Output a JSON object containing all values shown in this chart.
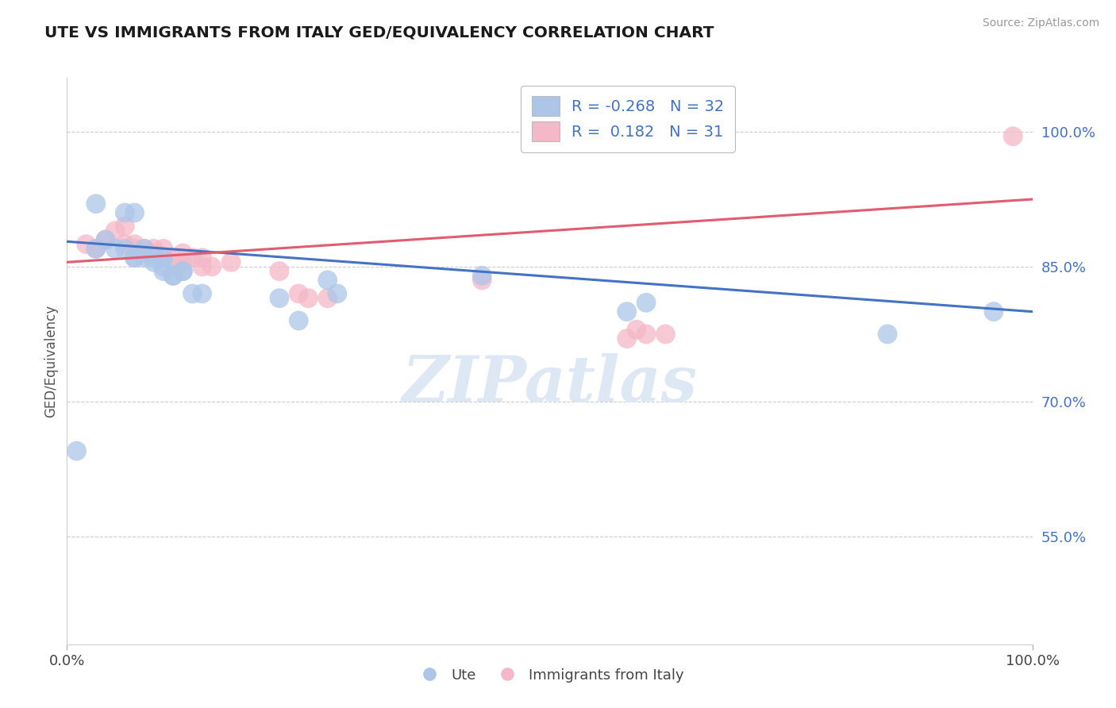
{
  "title": "UTE VS IMMIGRANTS FROM ITALY GED/EQUIVALENCY CORRELATION CHART",
  "source": "Source: ZipAtlas.com",
  "ylabel": "GED/Equivalency",
  "y_tick_labels": [
    "55.0%",
    "70.0%",
    "85.0%",
    "100.0%"
  ],
  "y_tick_values": [
    0.55,
    0.7,
    0.85,
    1.0
  ],
  "x_range": [
    0.0,
    1.0
  ],
  "y_range": [
    0.43,
    1.06
  ],
  "blue_color": "#adc6e8",
  "pink_color": "#f4b8c8",
  "blue_line_color": "#4472C4",
  "pink_line_color": "#E05C6E",
  "watermark_text": "ZIPatlas",
  "legend1_label": "R = -0.268   N = 32",
  "legend2_label": "R =  0.182   N = 31",
  "blue_points_x": [
    0.01,
    0.03,
    0.07,
    0.03,
    0.06,
    0.04,
    0.05,
    0.06,
    0.07,
    0.08,
    0.07,
    0.08,
    0.09,
    0.1,
    0.09,
    0.1,
    0.11,
    0.12,
    0.1,
    0.11,
    0.12,
    0.13,
    0.14,
    0.22,
    0.24,
    0.27,
    0.28,
    0.43,
    0.58,
    0.6,
    0.85,
    0.96
  ],
  "blue_points_y": [
    0.645,
    0.87,
    0.91,
    0.92,
    0.91,
    0.88,
    0.87,
    0.87,
    0.86,
    0.87,
    0.86,
    0.86,
    0.855,
    0.86,
    0.86,
    0.85,
    0.84,
    0.845,
    0.845,
    0.84,
    0.845,
    0.82,
    0.82,
    0.815,
    0.79,
    0.835,
    0.82,
    0.84,
    0.8,
    0.81,
    0.775,
    0.8
  ],
  "pink_points_x": [
    0.02,
    0.03,
    0.04,
    0.05,
    0.06,
    0.06,
    0.07,
    0.07,
    0.08,
    0.09,
    0.09,
    0.1,
    0.1,
    0.11,
    0.12,
    0.12,
    0.13,
    0.14,
    0.14,
    0.15,
    0.17,
    0.22,
    0.24,
    0.25,
    0.27,
    0.43,
    0.58,
    0.59,
    0.6,
    0.62,
    0.98
  ],
  "pink_points_y": [
    0.875,
    0.87,
    0.88,
    0.89,
    0.895,
    0.875,
    0.875,
    0.87,
    0.87,
    0.87,
    0.865,
    0.86,
    0.87,
    0.86,
    0.855,
    0.865,
    0.86,
    0.86,
    0.85,
    0.85,
    0.855,
    0.845,
    0.82,
    0.815,
    0.815,
    0.835,
    0.77,
    0.78,
    0.775,
    0.775,
    0.995
  ],
  "blue_line_x": [
    0.0,
    1.0
  ],
  "blue_line_y_start": 0.878,
  "blue_line_y_end": 0.8,
  "pink_line_x": [
    0.0,
    1.0
  ],
  "pink_line_y_start": 0.855,
  "pink_line_y_end": 0.925
}
